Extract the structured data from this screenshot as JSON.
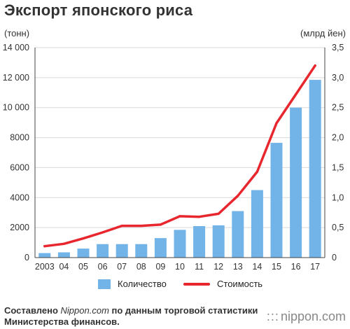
{
  "title": "Экспорт японского риса",
  "units": {
    "left": "(тонн)",
    "right": "(млрд йен)"
  },
  "source": {
    "prefix": "Составлено ",
    "site": "Nippon.com",
    "suffix": " по данным торговой статистики Министерства финансов."
  },
  "logo": {
    "text": "nippon.com"
  },
  "colors": {
    "bars": "#72b4e8",
    "line": "#e8262d",
    "grid": "#d9d9d9",
    "axis": "#444444"
  },
  "chart_data": {
    "type": "bar",
    "categories": [
      "2003",
      "04",
      "05",
      "06",
      "07",
      "08",
      "09",
      "10",
      "11",
      "12",
      "13",
      "14",
      "15",
      "16",
      "17"
    ],
    "series": [
      {
        "name": "Количество",
        "type": "bar",
        "axis": "left",
        "values": [
          300,
          350,
          600,
          900,
          900,
          900,
          1300,
          1850,
          2100,
          2150,
          3100,
          4500,
          7650,
          10000,
          11850
        ]
      },
      {
        "name": "Стоимость",
        "type": "line",
        "axis": "right",
        "values": [
          0.19,
          0.23,
          0.32,
          0.42,
          0.53,
          0.53,
          0.55,
          0.69,
          0.68,
          0.73,
          1.03,
          1.43,
          2.24,
          2.72,
          3.2
        ]
      }
    ],
    "y_left": {
      "lim": [
        0,
        14000
      ],
      "ticks": [
        "0",
        "2000",
        "4000",
        "6000",
        "8000",
        "10 000",
        "12 000",
        "14 000"
      ]
    },
    "y_right": {
      "lim": [
        0,
        3.5
      ],
      "ticks": [
        "0",
        "0,5",
        "1,0",
        "1,5",
        "2,0",
        "2,5",
        "3,0",
        "3,5"
      ]
    },
    "grid": true,
    "legend_position": "bottom"
  }
}
